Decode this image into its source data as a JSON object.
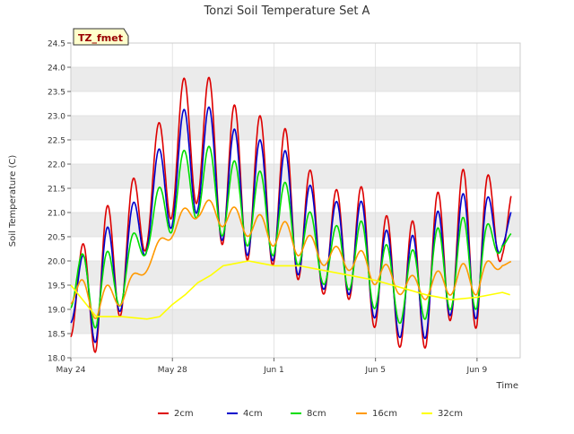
{
  "chart_data": {
    "type": "line",
    "title": "Tonzi Soil Temperature Set A",
    "xlabel": "Time",
    "ylabel": "Soil Temperature (C)",
    "ylim": [
      18.0,
      24.5
    ],
    "xlim": [
      0,
      17.7
    ],
    "y_ticks": [
      "18.0",
      "18.5",
      "19.0",
      "19.5",
      "20.0",
      "20.5",
      "21.0",
      "21.5",
      "22.0",
      "22.5",
      "23.0",
      "23.5",
      "24.0",
      "24.5"
    ],
    "x_ticks": [
      {
        "label": "May 24",
        "day": 0
      },
      {
        "label": "May 28",
        "day": 4
      },
      {
        "label": "Jun 1",
        "day": 8
      },
      {
        "label": "Jun 5",
        "day": 12
      },
      {
        "label": "Jun 9",
        "day": 16
      }
    ],
    "grid": true,
    "legend": "bottom",
    "tag_label": "TZ_fmet",
    "colors": {
      "band": "#ebebeb",
      "tag_fill": "#ffffcc",
      "tag_text": "#990000"
    },
    "series": [
      {
        "name": "2cm",
        "color": "#dd0000",
        "daily_max": [
          19.7,
          21.1,
          21.2,
          22.3,
          23.5,
          24.1,
          23.4,
          23.0,
          23.0,
          22.4,
          21.2,
          21.8,
          21.2,
          20.6,
          21.1,
          21.8,
          22.0,
          21.5
        ],
        "daily_min": [
          18.4,
          18.1,
          18.9,
          20.3,
          20.9,
          21.2,
          20.3,
          20.0,
          19.9,
          19.6,
          19.3,
          19.2,
          18.6,
          18.2,
          18.2,
          18.8,
          18.6,
          20.1
        ]
      },
      {
        "name": "4cm",
        "color": "#0000cc",
        "daily_max": [
          19.6,
          20.7,
          20.7,
          21.8,
          22.9,
          23.4,
          22.9,
          22.5,
          22.5,
          22.0,
          21.0,
          21.5,
          20.9,
          20.3,
          20.8,
          21.3,
          21.5,
          21.1
        ],
        "daily_min": [
          18.7,
          18.3,
          19.0,
          20.2,
          20.7,
          21.0,
          20.4,
          20.1,
          20.0,
          19.7,
          19.4,
          19.3,
          18.8,
          18.4,
          18.4,
          18.9,
          18.8,
          20.3
        ]
      },
      {
        "name": "8cm",
        "color": "#00dd00",
        "daily_max": [
          20.1,
          20.2,
          20.2,
          21.0,
          22.1,
          22.5,
          22.2,
          21.9,
          21.8,
          21.4,
          20.5,
          21.0,
          20.6,
          20.0,
          20.5,
          20.9,
          20.9,
          20.6
        ],
        "daily_min": [
          19.0,
          18.6,
          19.1,
          20.2,
          20.6,
          20.9,
          20.5,
          20.3,
          20.1,
          19.9,
          19.5,
          19.4,
          19.0,
          18.7,
          18.8,
          19.0,
          19.0,
          20.3
        ]
      },
      {
        "name": "16cm",
        "color": "#ff9900",
        "daily_max": [
          19.7,
          19.5,
          19.5,
          20.0,
          20.9,
          21.3,
          21.2,
          21.0,
          20.9,
          20.7,
          20.3,
          20.3,
          20.1,
          19.7,
          19.7,
          19.9,
          20.0,
          20.0
        ],
        "daily_min": [
          19.1,
          18.8,
          19.1,
          19.8,
          20.5,
          20.9,
          20.7,
          20.5,
          20.3,
          20.1,
          19.9,
          19.8,
          19.5,
          19.3,
          19.2,
          19.3,
          19.3,
          19.9
        ]
      },
      {
        "name": "32cm",
        "color": "#ffff00",
        "x": [
          0,
          1,
          2,
          3,
          3.5,
          4,
          4.5,
          5,
          5.5,
          6,
          6.5,
          7,
          7.5,
          8,
          9,
          10,
          11,
          12,
          13,
          14,
          15,
          16,
          17,
          17.3
        ],
        "y": [
          19.5,
          18.85,
          18.85,
          18.8,
          18.85,
          19.1,
          19.3,
          19.55,
          19.7,
          19.9,
          19.95,
          20.0,
          19.95,
          19.9,
          19.9,
          19.8,
          19.7,
          19.6,
          19.45,
          19.3,
          19.2,
          19.25,
          19.35,
          19.3
        ]
      }
    ]
  }
}
